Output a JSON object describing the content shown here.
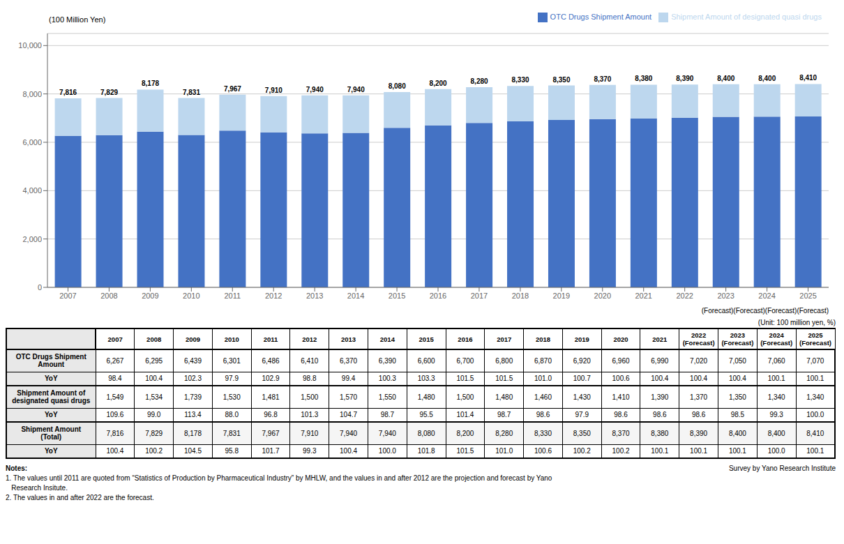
{
  "chart_data": {
    "type": "bar",
    "stacked": true,
    "grid": true,
    "legend": "upper right",
    "y_label": "(100 Million Yen)",
    "forecast_label": "(Forecast)(Forecast)(Forecast)(Forecast)",
    "categories": [
      "2007",
      "2008",
      "2009",
      "2010",
      "2011",
      "2012",
      "2013",
      "2014",
      "2015",
      "2016",
      "2017",
      "2018",
      "2019",
      "2020",
      "2021",
      "2022",
      "2023",
      "2024",
      "2025"
    ],
    "series": [
      {
        "name": "OTC Drugs Shipment Amount",
        "color": "#4472C4",
        "values": [
          6267,
          6295,
          6439,
          6301,
          6486,
          6410,
          6370,
          6390,
          6600,
          6700,
          6800,
          6870,
          6920,
          6960,
          6990,
          7020,
          7050,
          7060,
          7070
        ]
      },
      {
        "name": "Shipment Amount of designated quasi drugs",
        "color": "#BDD7EE",
        "values": [
          1549,
          1534,
          1739,
          1530,
          1481,
          1500,
          1570,
          1550,
          1480,
          1500,
          1480,
          1460,
          1430,
          1410,
          1390,
          1370,
          1350,
          1340,
          1340
        ]
      }
    ],
    "totals": [
      7816,
      7829,
      8178,
      7831,
      7967,
      7910,
      7940,
      7940,
      8080,
      8200,
      8280,
      8330,
      8350,
      8370,
      8380,
      8390,
      8400,
      8400,
      8410
    ],
    "total_labels": [
      "7,816",
      "7,829",
      "8,178",
      "7,831",
      "7,967",
      "7,910",
      "7,940",
      "7,940",
      "8,080",
      "8,200",
      "8,280",
      "8,330",
      "8,350",
      "8,370",
      "8,380",
      "8,390",
      "8,400",
      "8,400",
      "8,410"
    ],
    "ylim": [
      0,
      10500
    ],
    "yticks": [
      0,
      {
        "value": 2000,
        "label": "2,000"
      },
      {
        "value": 4000,
        "label": "4,000"
      },
      {
        "value": 6000,
        "label": "6,000"
      },
      {
        "value": 8000,
        "label": "8,000"
      },
      {
        "value": 10000,
        "label": "10,000"
      }
    ],
    "table": {
      "title": "(Unit: 100 million yen, %)",
      "columns": [
        "2007",
        "2008",
        "2009",
        "2010",
        "2011",
        "2012",
        "2013",
        "2014",
        "2015",
        "2016",
        "2017",
        "2018",
        "2019",
        "2020",
        "2021",
        "2022\n(Forecast)",
        "2023\n(Forecast)",
        "2024\n(Forecast)",
        "2025\n(Forecast)"
      ],
      "rows": [
        {
          "name": "OTC Drugs Shipment\nAmount",
          "values": [
            6267,
            6295,
            6439,
            6301,
            6486,
            6410,
            6370,
            6390,
            6600,
            6700,
            6800,
            6870,
            6920,
            6960,
            6990,
            7020,
            7050,
            7060,
            7070
          ],
          "value_labels": [
            "6,267",
            "6,295",
            "6,439",
            "6,301",
            "6,486",
            "6,410",
            "6,370",
            "6,390",
            "6,600",
            "6,700",
            "6,800",
            "6,870",
            "6,920",
            "6,960",
            "6,990",
            "7,020",
            "7,050",
            "7,060",
            "7,070"
          ]
        },
        {
          "name": "YoY",
          "values": [
            98.4,
            100.4,
            102.3,
            97.9,
            102.9,
            98.8,
            99.4,
            100.3,
            103.3,
            101.5,
            101.5,
            101.0,
            100.7,
            100.6,
            100.4,
            100.4,
            100.4,
            100.1,
            100.1
          ],
          "value_labels": [
            "98.4",
            "100.4",
            "102.3",
            "97.9",
            "102.9",
            "98.8",
            "99.4",
            "100.3",
            "103.3",
            "101.5",
            "101.5",
            "101.0",
            "100.7",
            "100.6",
            "100.4",
            "100.4",
            "100.4",
            "100.1",
            "100.1"
          ]
        },
        {
          "name": "Shipment Amount of\ndesignated quasi drugs",
          "values": [
            1549,
            1534,
            1739,
            1530,
            1481,
            1500,
            1570,
            1550,
            1480,
            1500,
            1480,
            1460,
            1430,
            1410,
            1390,
            1370,
            1350,
            1340,
            1340
          ],
          "value_labels": [
            "1,549",
            "1,534",
            "1,739",
            "1,530",
            "1,481",
            "1,500",
            "1,570",
            "1,550",
            "1,480",
            "1,500",
            "1,480",
            "1,460",
            "1,430",
            "1,410",
            "1,390",
            "1,370",
            "1,350",
            "1,340",
            "1,340"
          ]
        },
        {
          "name": "YoY",
          "values": [
            109.6,
            99.0,
            113.4,
            88.0,
            96.8,
            101.3,
            104.7,
            98.7,
            95.5,
            101.4,
            98.7,
            98.6,
            97.9,
            98.6,
            98.6,
            98.6,
            98.5,
            99.3,
            100.0
          ],
          "value_labels": [
            "109.6",
            "99.0",
            "113.4",
            "88.0",
            "96.8",
            "101.3",
            "104.7",
            "98.7",
            "95.5",
            "101.4",
            "98.7",
            "98.6",
            "97.9",
            "98.6",
            "98.6",
            "98.6",
            "98.5",
            "99.3",
            "100.0"
          ]
        },
        {
          "name": "Shipment Amount\n(Total)",
          "values": [
            7816,
            7829,
            8178,
            7831,
            7967,
            7910,
            7940,
            7940,
            8080,
            8200,
            8280,
            8330,
            8350,
            8370,
            8380,
            8390,
            8400,
            8400,
            8410
          ],
          "value_labels": [
            "7,816",
            "7,829",
            "8,178",
            "7,831",
            "7,967",
            "7,910",
            "7,940",
            "7,940",
            "8,080",
            "8,200",
            "8,280",
            "8,330",
            "8,350",
            "8,370",
            "8,380",
            "8,390",
            "8,400",
            "8,400",
            "8,410"
          ]
        },
        {
          "name": "YoY",
          "values": [
            100.4,
            100.2,
            104.5,
            95.8,
            101.7,
            99.3,
            100.4,
            100.0,
            101.8,
            101.5,
            101.0,
            100.6,
            100.2,
            100.2,
            100.1,
            100.1,
            100.1,
            100.0,
            100.1
          ],
          "value_labels": [
            "100.4",
            "100.2",
            "104.5",
            "95.8",
            "101.7",
            "99.3",
            "100.4",
            "100.0",
            "101.8",
            "101.5",
            "101.0",
            "100.6",
            "100.2",
            "100.2",
            "100.1",
            "100.1",
            "100.1",
            "100.0",
            "100.1"
          ]
        }
      ]
    },
    "notes_heading": "Notes:",
    "source": "Survey by Yano Research Institute",
    "notes": [
      "1. The values until 2011 are quoted from “Statistics of Production by Pharmaceutical Industry” by MHLW, and the values in and after 2012 are the projection and forecast by Yano",
      "   Research Insitute.",
      "2. The values in and after 2022 are the forecast."
    ]
  }
}
